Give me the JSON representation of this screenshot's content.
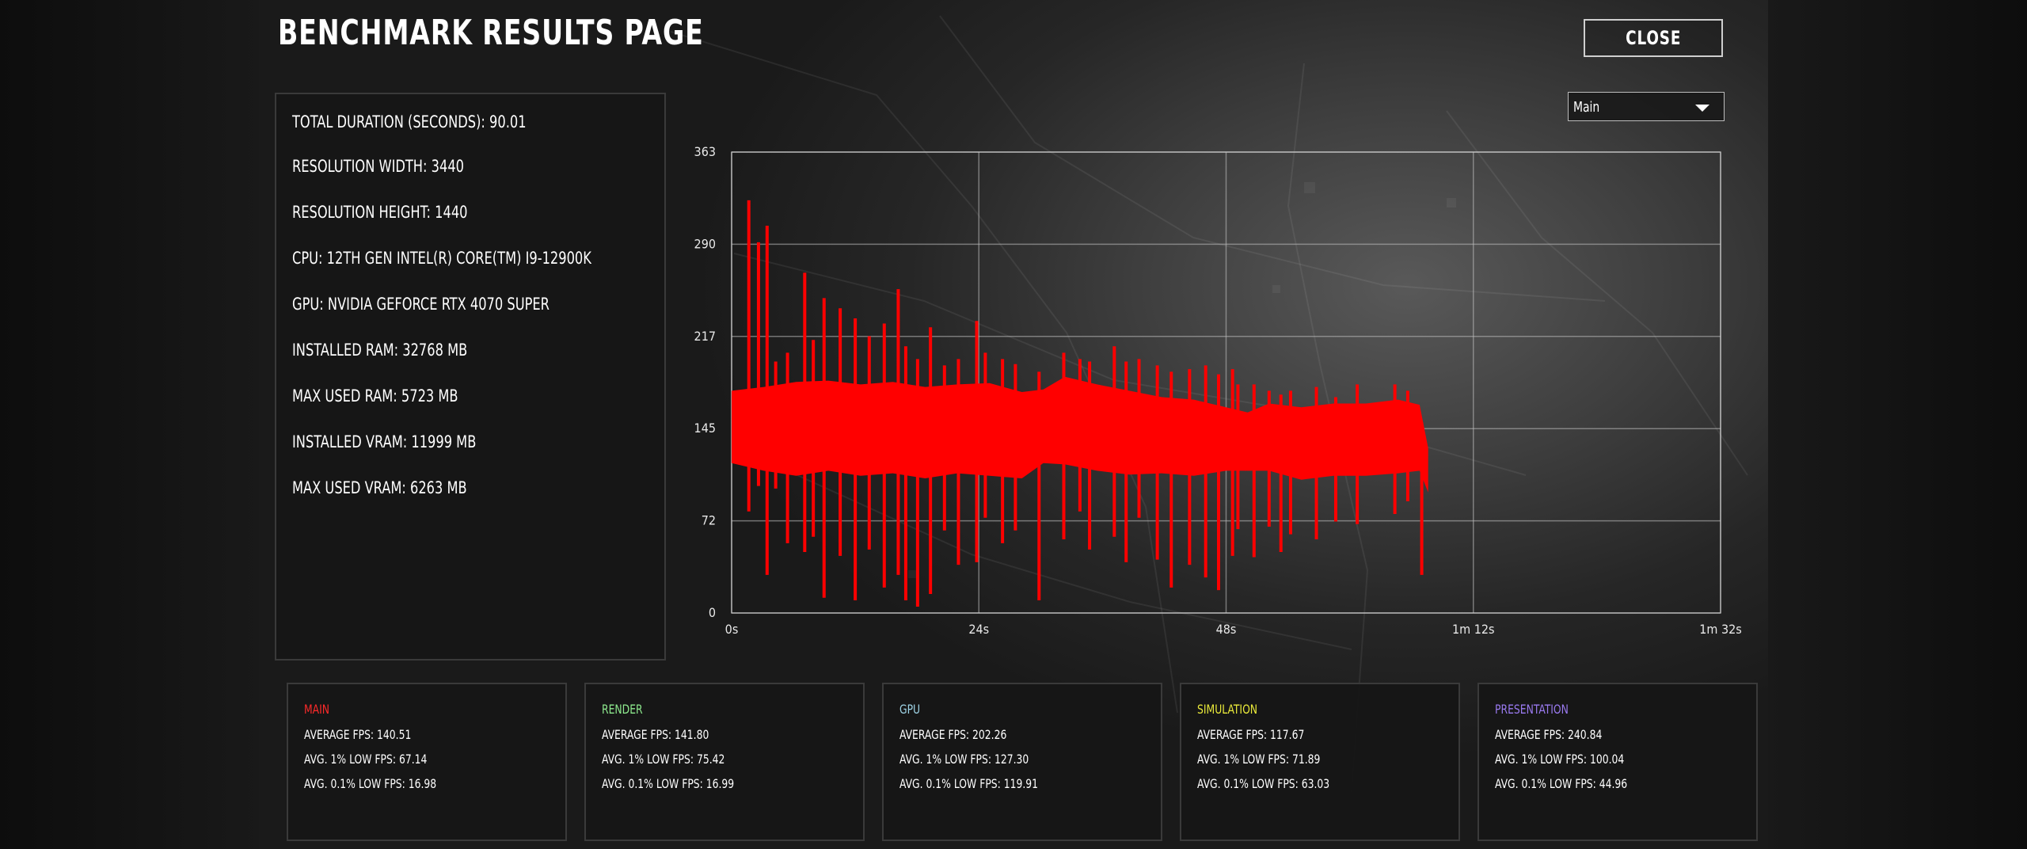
{
  "header": {
    "title": "BENCHMARK RESULTS PAGE",
    "close_label": "CLOSE"
  },
  "info": [
    {
      "label": "TOTAL DURATION (SECONDS): 90.01"
    },
    {
      "label": "RESOLUTION WIDTH: 3440"
    },
    {
      "label": "RESOLUTION HEIGHT: 1440"
    },
    {
      "label": "CPU: 12TH GEN INTEL(R) CORE(TM) I9-12900K"
    },
    {
      "label": "GPU: NVIDIA GEFORCE RTX 4070 SUPER"
    },
    {
      "label": "INSTALLED RAM: 32768 MB"
    },
    {
      "label": "MAX USED RAM: 5723 MB"
    },
    {
      "label": "INSTALLED VRAM: 11999 MB"
    },
    {
      "label": "MAX USED VRAM: 6263 MB"
    }
  ],
  "dropdown": {
    "selected": "Main"
  },
  "chart_data": {
    "type": "line",
    "series": [
      {
        "name": "Main",
        "color": "#ff0000",
        "band": [
          [
            0,
            175,
            118
          ],
          [
            3,
            178,
            112
          ],
          [
            6,
            182,
            108
          ],
          [
            9,
            183,
            112
          ],
          [
            12,
            180,
            108
          ],
          [
            15,
            182,
            110
          ],
          [
            18,
            178,
            106
          ],
          [
            21,
            180,
            110
          ],
          [
            24,
            181,
            108
          ],
          [
            27,
            174,
            106
          ],
          [
            29,
            176,
            118
          ],
          [
            31,
            186,
            117
          ],
          [
            34,
            180,
            112
          ],
          [
            37,
            175,
            109
          ],
          [
            40,
            170,
            110
          ],
          [
            43,
            168,
            108
          ],
          [
            46,
            162,
            112
          ],
          [
            48,
            158,
            112
          ],
          [
            50,
            165,
            112
          ],
          [
            53,
            162,
            105
          ],
          [
            56,
            165,
            108
          ],
          [
            59,
            165,
            108
          ],
          [
            62,
            168,
            110
          ],
          [
            64,
            164,
            112
          ],
          [
            64.8,
            130,
            95
          ]
        ],
        "spikes": [
          [
            1.6,
            325,
            80
          ],
          [
            2.5,
            292,
            100
          ],
          [
            3.3,
            305,
            30
          ],
          [
            4.1,
            198,
            98
          ],
          [
            5.2,
            205,
            55
          ],
          [
            6.8,
            268,
            48
          ],
          [
            7.6,
            215,
            60
          ],
          [
            8.6,
            248,
            12
          ],
          [
            10.1,
            240,
            45
          ],
          [
            11.5,
            232,
            10
          ],
          [
            12.8,
            218,
            50
          ],
          [
            14.2,
            228,
            20
          ],
          [
            15.5,
            255,
            30
          ],
          [
            16.2,
            210,
            10
          ],
          [
            17.3,
            200,
            5
          ],
          [
            18.5,
            225,
            15
          ],
          [
            19.8,
            195,
            65
          ],
          [
            21.1,
            200,
            38
          ],
          [
            22.8,
            230,
            40
          ],
          [
            23.6,
            205,
            75
          ],
          [
            25.2,
            200,
            55
          ],
          [
            26.4,
            196,
            65
          ],
          [
            28.6,
            190,
            10
          ],
          [
            30.9,
            205,
            58
          ],
          [
            32.4,
            200,
            80
          ],
          [
            33.3,
            198,
            50
          ],
          [
            35.6,
            210,
            60
          ],
          [
            36.7,
            198,
            40
          ],
          [
            37.9,
            200,
            75
          ],
          [
            39.6,
            195,
            42
          ],
          [
            40.9,
            190,
            20
          ],
          [
            42.6,
            192,
            38
          ],
          [
            44.1,
            195,
            28
          ],
          [
            45.3,
            188,
            18
          ],
          [
            46.6,
            192,
            45
          ],
          [
            47.1,
            180,
            66
          ],
          [
            48.6,
            180,
            44
          ],
          [
            50.0,
            175,
            68
          ],
          [
            51.1,
            172,
            48
          ],
          [
            52.0,
            175,
            62
          ],
          [
            54.4,
            178,
            58
          ],
          [
            56.2,
            170,
            72
          ],
          [
            58.2,
            180,
            70
          ],
          [
            61.7,
            180,
            78
          ],
          [
            62.9,
            175,
            88
          ],
          [
            64.2,
            150,
            30
          ]
        ]
      }
    ],
    "xlim": [
      0,
      92
    ],
    "ylim": [
      0,
      363
    ],
    "x_ticks": [
      "0s",
      "24s",
      "48s",
      "1m 12s",
      "1m 32s"
    ],
    "y_ticks": [
      "0",
      "72",
      "145",
      "217",
      "290",
      "363"
    ],
    "grid": true
  },
  "stats": [
    {
      "name": "MAIN",
      "color": "#ff2a2a",
      "avg": "AVERAGE FPS: 140.51",
      "low1": "AVG. 1% LOW FPS: 67.14",
      "low01": "AVG. 0.1% LOW FPS: 16.98"
    },
    {
      "name": "RENDER",
      "color": "#8eea8e",
      "avg": "AVERAGE FPS: 141.80",
      "low1": "AVG. 1% LOW FPS: 75.42",
      "low01": "AVG. 0.1% LOW FPS: 16.99"
    },
    {
      "name": "GPU",
      "color": "#9fd4e6",
      "avg": "AVERAGE FPS: 202.26",
      "low1": "AVG. 1% LOW FPS: 127.30",
      "low01": "AVG. 0.1% LOW FPS: 119.91"
    },
    {
      "name": "SIMULATION",
      "color": "#eaea3a",
      "avg": "AVERAGE FPS: 117.67",
      "low1": "AVG. 1% LOW FPS: 71.89",
      "low01": "AVG. 0.1% LOW FPS: 63.03"
    },
    {
      "name": "PRESENTATION",
      "color": "#9a7af0",
      "avg": "AVERAGE FPS: 240.84",
      "low1": "AVG. 1% LOW FPS: 100.04",
      "low01": "AVG. 0.1% LOW FPS: 44.96"
    }
  ]
}
